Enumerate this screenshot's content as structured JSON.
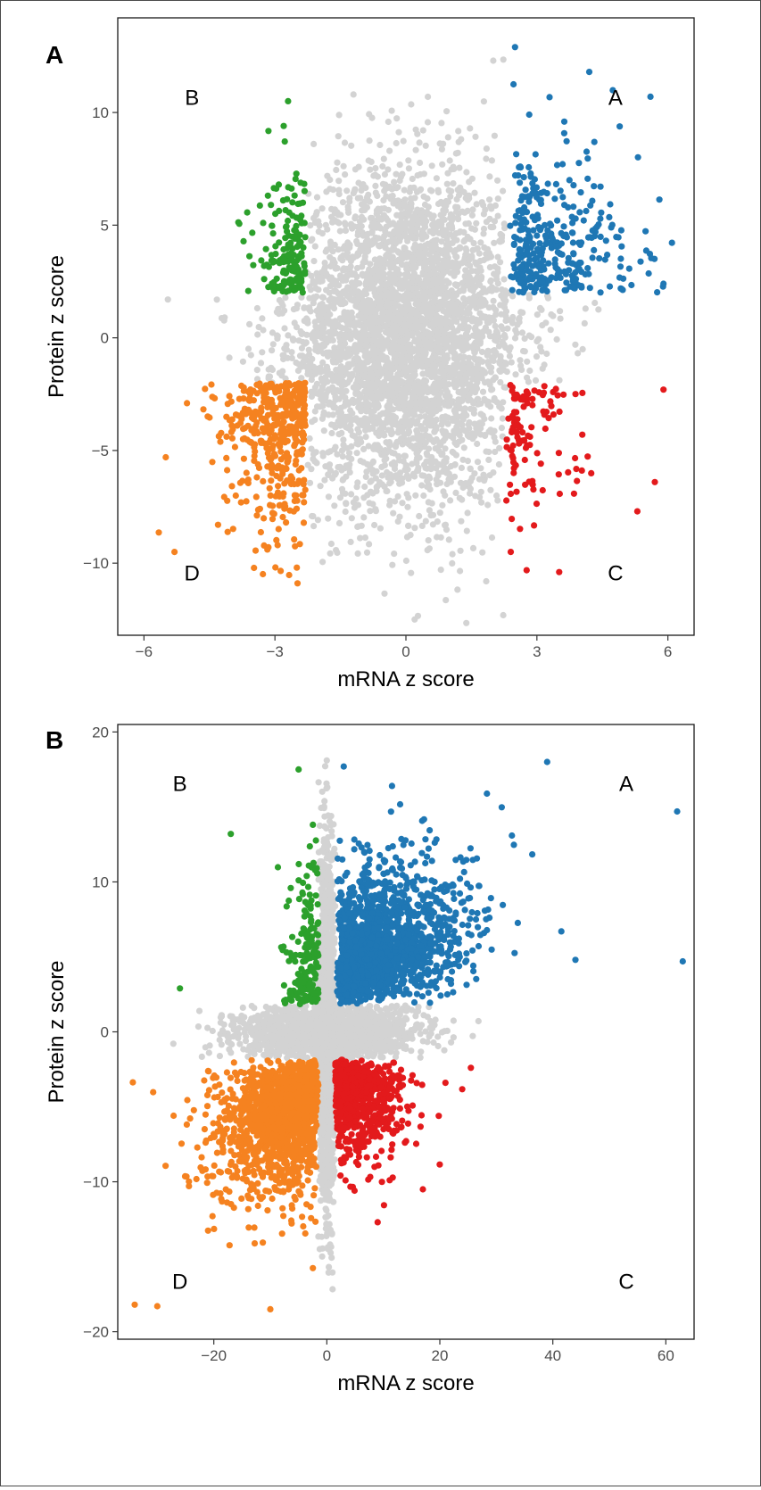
{
  "chart_data": [
    {
      "type": "scatter",
      "panel_label": "A",
      "xlabel": "mRNA z score",
      "ylabel": "Protein z score",
      "xlim": [
        -6.6,
        6.6
      ],
      "ylim": [
        -13.2,
        14.2
      ],
      "xticks": [
        -6,
        -3,
        0,
        3,
        6
      ],
      "xtick_labels": [
        "−6",
        "−3",
        "0",
        "3",
        "6"
      ],
      "yticks": [
        -10,
        -5,
        0,
        5,
        10
      ],
      "ytick_labels": [
        "−10",
        "−5",
        "0",
        "5",
        "10"
      ],
      "grid": false,
      "quadrant_labels": [
        {
          "text": "A",
          "x": 4.8,
          "y": 10.7
        },
        {
          "text": "B",
          "x": -4.9,
          "y": 10.7
        },
        {
          "text": "C",
          "x": 4.8,
          "y": -10.4
        },
        {
          "text": "D",
          "x": -4.9,
          "y": -10.4
        }
      ],
      "thresholds": {
        "x": 2.3,
        "y": 2.0
      },
      "colors": {
        "A": "#1f77b4",
        "B": "#2ca02c",
        "C": "#e31a1c",
        "D": "#f58220",
        "other": "#d3d3d3"
      },
      "distribution": {
        "n_background": 4200,
        "sd_x": 1.35,
        "sd_y": 3.6,
        "corr": 0.05,
        "n_A": 330,
        "n_B": 170,
        "n_C": 110,
        "n_D": 420
      },
      "notable_points": [
        {
          "x": 2.5,
          "y": 12.9,
          "group": "A"
        },
        {
          "x": 4.2,
          "y": 11.8,
          "group": "A"
        },
        {
          "x": 5.6,
          "y": 10.7,
          "group": "A"
        },
        {
          "x": -2.7,
          "y": 10.5,
          "group": "B"
        },
        {
          "x": -2.8,
          "y": 9.4,
          "group": "B"
        },
        {
          "x": 5.9,
          "y": 2.4,
          "group": "A"
        },
        {
          "x": 5.9,
          "y": -2.3,
          "group": "C"
        },
        {
          "x": 5.7,
          "y": -6.4,
          "group": "C"
        },
        {
          "x": 5.3,
          "y": -7.7,
          "group": "C"
        },
        {
          "x": 2.4,
          "y": -9.5,
          "group": "C"
        },
        {
          "x": -5.5,
          "y": -5.3,
          "group": "D"
        },
        {
          "x": -5.3,
          "y": -9.5,
          "group": "D"
        },
        {
          "x": 2.0,
          "y": 12.3,
          "group": "other"
        },
        {
          "x": 0.2,
          "y": -12.5,
          "group": "other"
        }
      ]
    },
    {
      "type": "scatter",
      "panel_label": "B",
      "xlabel": "mRNA z score",
      "ylabel": "Protein z score",
      "xlim": [
        -37,
        65
      ],
      "ylim": [
        -20.5,
        20.5
      ],
      "xticks": [
        -20,
        0,
        20,
        40,
        60
      ],
      "xtick_labels": [
        "−20",
        "0",
        "20",
        "40",
        "60"
      ],
      "yticks": [
        -20,
        -10,
        0,
        10,
        20
      ],
      "ytick_labels": [
        "−20",
        "−10",
        "0",
        "10",
        "20"
      ],
      "grid": false,
      "quadrant_labels": [
        {
          "text": "A",
          "x": 53,
          "y": 16.6
        },
        {
          "text": "B",
          "x": -26,
          "y": 16.6
        },
        {
          "text": "C",
          "x": 53,
          "y": -16.6
        },
        {
          "text": "D",
          "x": -26,
          "y": -16.6
        }
      ],
      "thresholds": {
        "x": 1.5,
        "y": 1.8
      },
      "colors": {
        "A": "#1f77b4",
        "B": "#2ca02c",
        "C": "#e31a1c",
        "D": "#f58220",
        "other": "#d3d3d3"
      },
      "distribution": {
        "n_background": 3200,
        "n_A": 1600,
        "n_B": 170,
        "n_C": 700,
        "n_D": 1500
      },
      "notable_points": [
        {
          "x": 62,
          "y": 14.7,
          "group": "A"
        },
        {
          "x": 63,
          "y": 4.7,
          "group": "A"
        },
        {
          "x": 41.5,
          "y": 6.7,
          "group": "A"
        },
        {
          "x": 44,
          "y": 4.8,
          "group": "A"
        },
        {
          "x": 39,
          "y": 18.0,
          "group": "A"
        },
        {
          "x": 3,
          "y": 17.7,
          "group": "A"
        },
        {
          "x": -5,
          "y": 17.5,
          "group": "B"
        },
        {
          "x": -17,
          "y": 13.2,
          "group": "B"
        },
        {
          "x": -26,
          "y": 2.9,
          "group": "B"
        },
        {
          "x": -34,
          "y": -18.2,
          "group": "D"
        },
        {
          "x": -30,
          "y": -18.3,
          "group": "D"
        },
        {
          "x": -10,
          "y": -18.5,
          "group": "D"
        },
        {
          "x": 25.5,
          "y": -2.4,
          "group": "C"
        },
        {
          "x": 21,
          "y": -3.4,
          "group": "C"
        },
        {
          "x": 9,
          "y": -12.7,
          "group": "C"
        },
        {
          "x": 17,
          "y": -10.5,
          "group": "C"
        },
        {
          "x": 0,
          "y": 18.1,
          "group": "other"
        }
      ]
    }
  ]
}
